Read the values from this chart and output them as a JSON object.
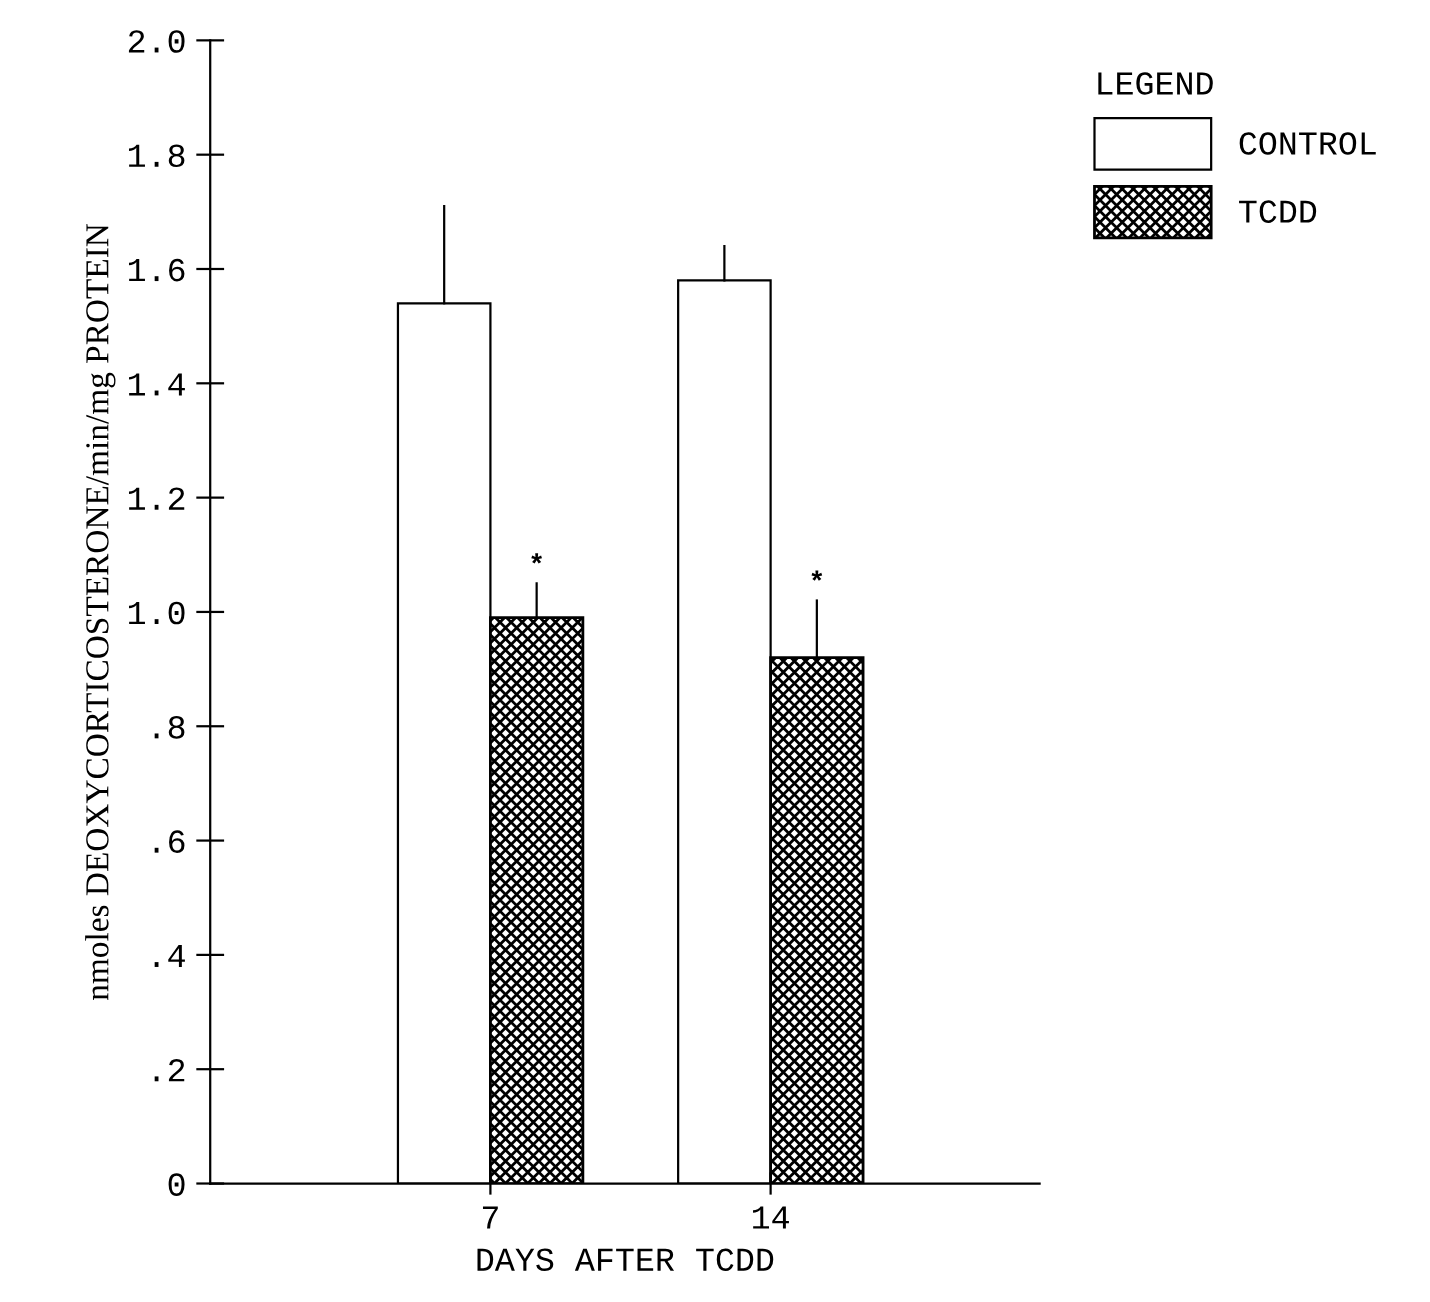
{
  "chart_data": {
    "type": "bar",
    "xlabel": "DAYS AFTER TCDD",
    "ylabel": "nmoles DEOXYCORTICOSTERONE/min/mg PROTEIN",
    "legend_title": "LEGEND",
    "categories": [
      "7",
      "14"
    ],
    "series": [
      {
        "name": "CONTROL",
        "color": "#ffffff",
        "values": [
          1.54,
          1.58
        ],
        "errors": [
          [
            1.54,
            1.71
          ],
          [
            1.58,
            1.64
          ]
        ]
      },
      {
        "name": "TCDD",
        "color": "#000000",
        "values": [
          0.99,
          0.92
        ],
        "errors": [
          [
            0.99,
            1.05
          ],
          [
            0.92,
            1.02
          ]
        ]
      }
    ],
    "annotations": [
      {
        "text": "*",
        "x": "7",
        "y": 1.08
      },
      {
        "text": "*",
        "x": "14",
        "y": 1.05
      }
    ],
    "ylim": [
      0,
      2.0
    ],
    "yticks": [
      0,
      {
        "value": 0.2,
        "label": ".2"
      },
      {
        "value": 0.4,
        "label": ".4"
      },
      {
        "value": 0.6,
        "label": ".6"
      },
      {
        "value": 0.8,
        "label": ".8"
      },
      {
        "value": 1.0,
        "label": "1.0"
      },
      {
        "value": 1.2,
        "label": "1.2"
      },
      {
        "value": 1.4,
        "label": "1.4"
      },
      {
        "value": 1.6,
        "label": "1.6"
      },
      {
        "value": 1.8,
        "label": "1.8"
      },
      {
        "value": 2.0,
        "label": "2.0"
      }
    ],
    "grid": false,
    "legend": "top right"
  }
}
